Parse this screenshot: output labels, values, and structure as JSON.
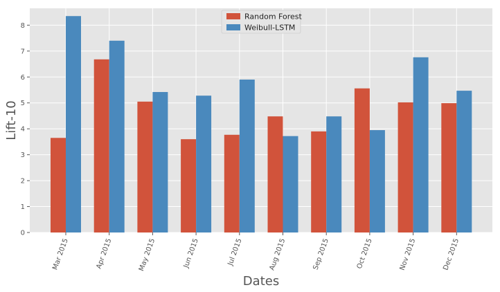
{
  "chart_data": {
    "type": "bar",
    "categories": [
      "Mar 2015",
      "Apr 2015",
      "May 2015",
      "Jun 2015",
      "Jul 2015",
      "Aug 2015",
      "Sep 2015",
      "Oct 2015",
      "Nov 2015",
      "Dec 2015"
    ],
    "series": [
      {
        "name": "Random Forest",
        "color": "#d1533b",
        "values": [
          3.65,
          6.68,
          5.05,
          3.6,
          3.77,
          4.48,
          3.9,
          5.56,
          5.02,
          4.99
        ]
      },
      {
        "name": "Weibull-LSTM",
        "color": "#4a89bd",
        "values": [
          8.35,
          7.4,
          5.42,
          5.28,
          5.9,
          3.72,
          4.48,
          3.95,
          6.76,
          5.47
        ]
      }
    ],
    "xlabel": "Dates",
    "ylabel": "Lift-10",
    "ylim": [
      0,
      8.65
    ],
    "yticks": [
      "0",
      "1",
      "2",
      "3",
      "4",
      "5",
      "6",
      "7",
      "8"
    ],
    "grid": true,
    "legend": "top-center",
    "style": {
      "plot_background": "#e5e5e5",
      "grid_color": "#ffffff"
    }
  }
}
